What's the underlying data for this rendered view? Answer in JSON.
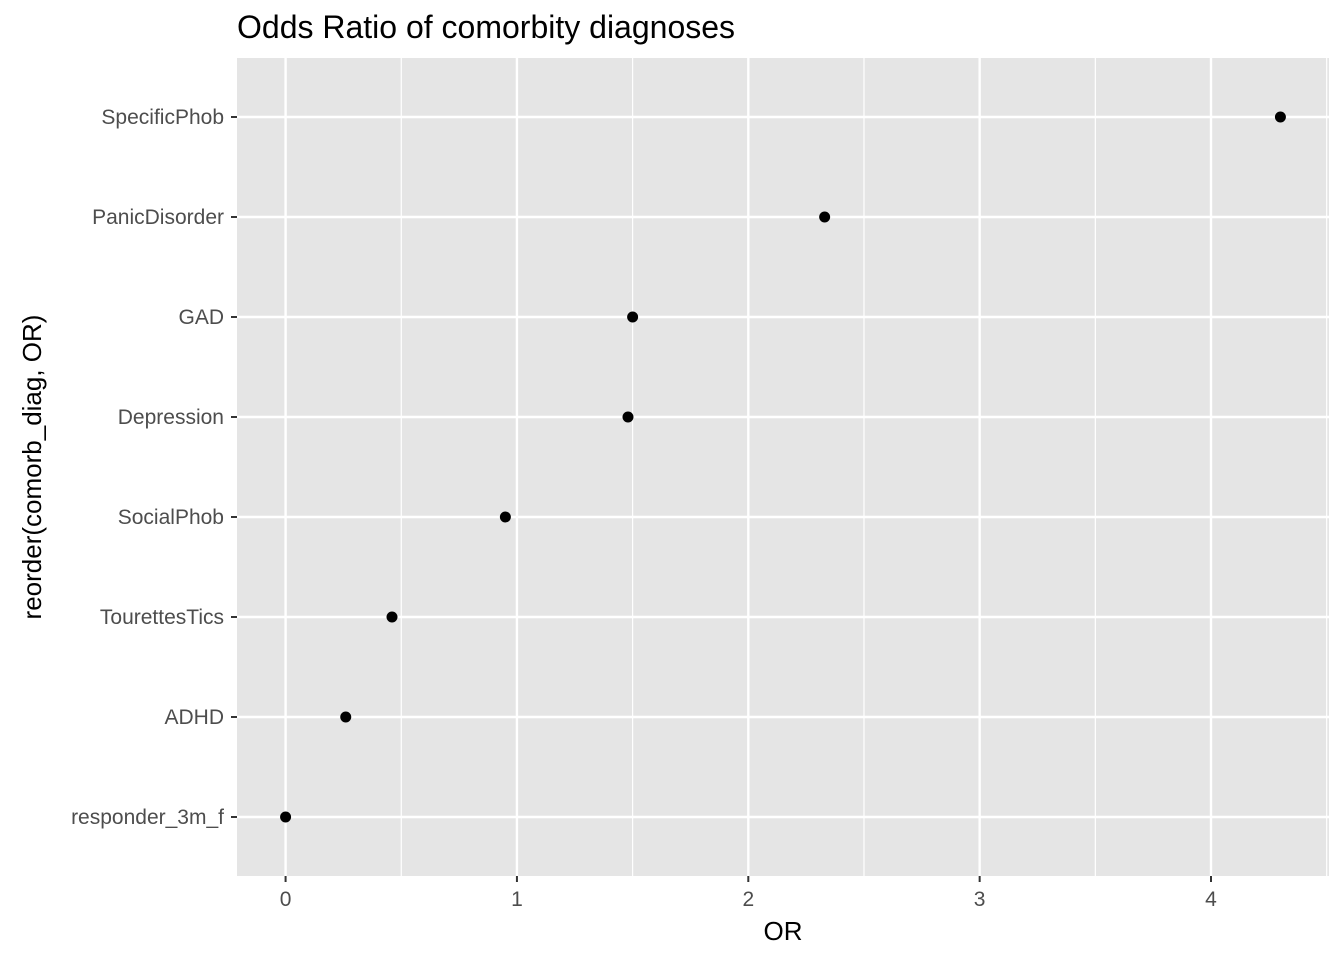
{
  "chart_data": {
    "type": "scatter",
    "title": "Odds Ratio of comorbity diagnoses",
    "xlabel": "OR",
    "ylabel": "reorder(comorb_diag, OR)",
    "xlim": [
      -0.21,
      4.51
    ],
    "xticks": [
      0,
      1,
      2,
      3,
      4
    ],
    "xtick_labels": [
      "0",
      "1",
      "2",
      "3",
      "4"
    ],
    "categories": [
      "responder_3m_f",
      "ADHD",
      "TourettesTics",
      "SocialPhob",
      "Depression",
      "GAD",
      "PanicDisorder",
      "SpecificPhob"
    ],
    "values": [
      0.0,
      0.26,
      0.46,
      0.95,
      1.48,
      1.5,
      2.33,
      4.3
    ],
    "grid": true,
    "legend": "none",
    "colors": {
      "panel": "#e5e5e5",
      "grid": "#ffffff",
      "point": "#000000",
      "tick_text": "#4d4d4d",
      "axis_title": "#000000",
      "tick_mark": "#333333"
    }
  }
}
